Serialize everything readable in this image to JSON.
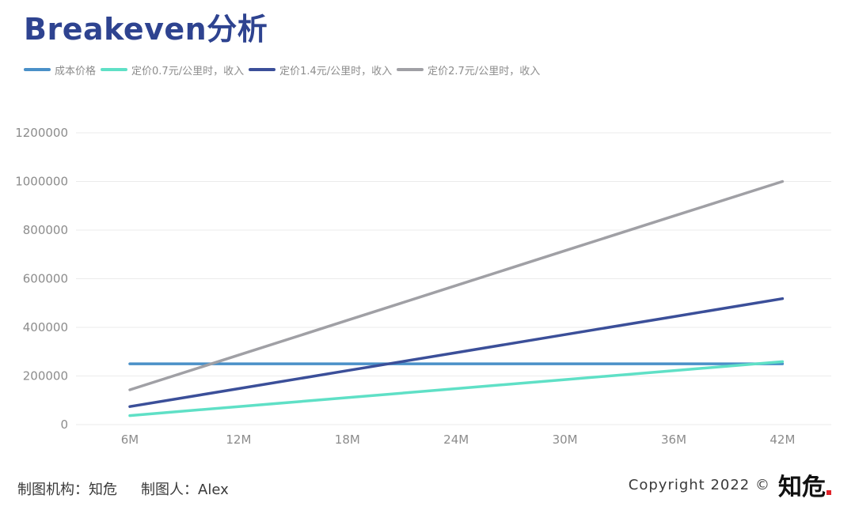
{
  "title": "Breakeven分析",
  "footer": {
    "org_label": "制图机构：知危",
    "author_label": "制图人：Alex",
    "copyright": "Copyright 2022 ©",
    "brand": "知危"
  },
  "colors": {
    "title": "#2e4390",
    "grid": "#ebebeb",
    "axis_text": "#8c8c8c",
    "brand_dot": "#e0242b"
  },
  "chart_data": {
    "type": "line",
    "x": [
      "6M",
      "12M",
      "18M",
      "24M",
      "30M",
      "36M",
      "42M"
    ],
    "ylim": [
      0,
      1200000
    ],
    "yticks": [
      "0",
      "200000",
      "400000",
      "600000",
      "800000",
      "1000000",
      "1200000"
    ],
    "grid": true,
    "legend": "top-left",
    "series": [
      {
        "name": "成本价格",
        "color": "#4a90c8",
        "values": [
          250000,
          250000,
          250000,
          250000,
          250000,
          250000,
          250000
        ]
      },
      {
        "name": "定价0.7元/公里时，收入",
        "color": "#5fe0c6",
        "values": [
          37000,
          74000,
          111000,
          148000,
          185000,
          222000,
          259000
        ]
      },
      {
        "name": "定价1.4元/公里时，收入",
        "color": "#3b4f99",
        "values": [
          74000,
          148000,
          222000,
          296000,
          370000,
          444000,
          518000
        ]
      },
      {
        "name": "定价2.7元/公里时，收入",
        "color": "#a0a0a5",
        "values": [
          143000,
          286000,
          429000,
          572000,
          715000,
          858000,
          1000000
        ]
      }
    ]
  }
}
